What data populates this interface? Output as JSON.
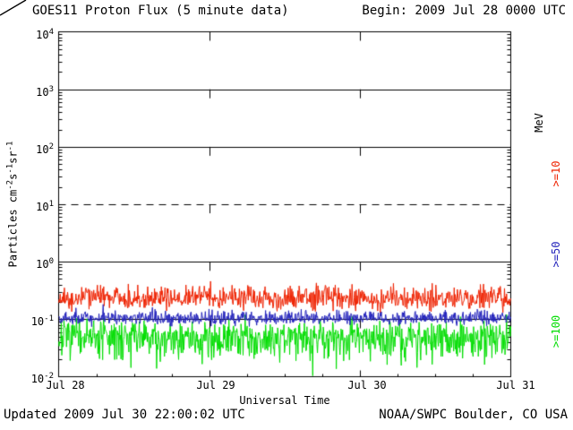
{
  "header": {
    "title": "GOES11 Proton Flux (5 minute data)",
    "begin": "Begin: 2009 Jul 28 0000 UTC"
  },
  "footer": {
    "updated": "Updated 2009 Jul 30 22:00:02 UTC",
    "credit": "NOAA/SWPC Boulder, CO USA"
  },
  "axes": {
    "x_label": "Universal Time",
    "y_label_parts": [
      "Particles cm",
      "-2",
      "s",
      "-1",
      "sr",
      "-1"
    ],
    "y_ticks": [
      {
        "base": "10",
        "exp": "4"
      },
      {
        "base": "10",
        "exp": "3"
      },
      {
        "base": "10",
        "exp": "2"
      },
      {
        "base": "10",
        "exp": "1"
      },
      {
        "base": "10",
        "exp": "0"
      },
      {
        "base": "10",
        "exp": "-1"
      },
      {
        "base": "10",
        "exp": "-2"
      }
    ],
    "x_ticks": [
      "Jul 28",
      "Jul 29",
      "Jul 30",
      "Jul 31"
    ]
  },
  "right_labels": {
    "units": "MeV",
    "series": [
      ">=10",
      ">=50",
      ">=100"
    ]
  },
  "chart_data": {
    "type": "line",
    "title": "GOES11 Proton Flux (5 minute data)",
    "x_start": "2009 Jul 28 0000 UTC",
    "x_end": "2009 Jul 31 0000 UTC",
    "cadence_minutes": 5,
    "n_points": 864,
    "y_scale": "log",
    "ylim": [
      0.01,
      10000
    ],
    "xlabel": "Universal Time",
    "ylabel": "Particles cm^-2 s^-1 sr^-1",
    "x_tick_labels": [
      "Jul 28",
      "Jul 29",
      "Jul 30",
      "Jul 31"
    ],
    "y_tick_decades": [
      4,
      3,
      2,
      1,
      0,
      -1,
      -2
    ],
    "gridlines": {
      "solid_decades": [
        3,
        2,
        0,
        -1
      ],
      "dashed_decades": [
        1
      ],
      "vertical_dashed_day_boundaries": [
        "Jul 29",
        "Jul 30"
      ]
    },
    "legend_position": "right-rotated",
    "series": [
      {
        "name": ">=10 MeV",
        "color": "#ee2200",
        "approx_flux": 0.23,
        "log10_mean": -0.64,
        "log10_sigma": 0.1,
        "log10_sigma_up": 0.11,
        "log10_sigma_down": 0.09,
        "seed": 17
      },
      {
        "name": ">=50 MeV",
        "color": "#2222bb",
        "approx_flux": 0.1,
        "log10_mean": -0.99,
        "log10_sigma": 0.06,
        "log10_sigma_up": 0.07,
        "log10_sigma_down": 0.05,
        "seed": 42
      },
      {
        "name": ">=100 MeV",
        "color": "#00dd00",
        "approx_flux": 0.05,
        "log10_mean": -1.3,
        "log10_sigma": 0.16,
        "log10_sigma_up": 0.13,
        "log10_sigma_down": 0.2,
        "seed": 7
      }
    ]
  }
}
